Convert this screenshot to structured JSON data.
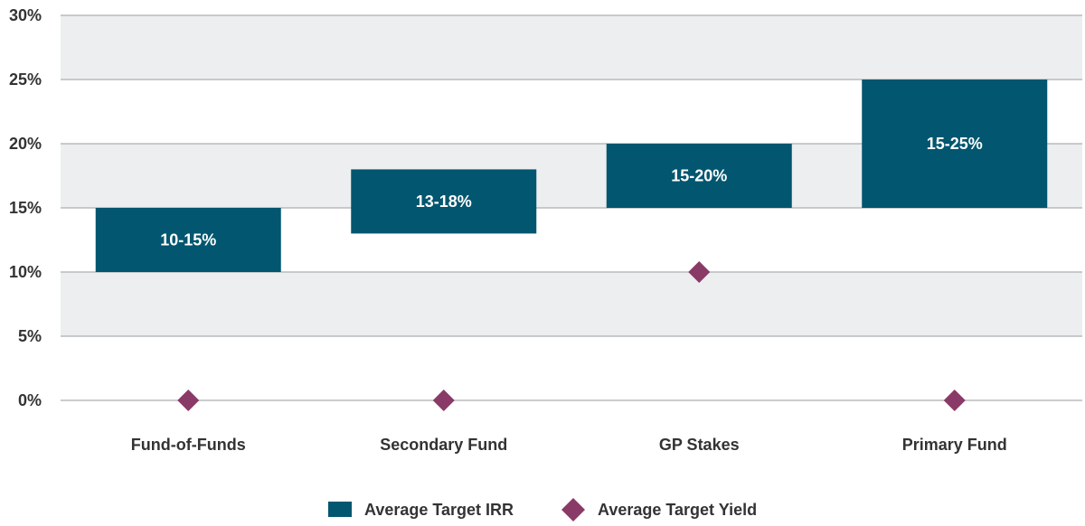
{
  "colors": {
    "bar": "#02566f",
    "marker": "#8a3a66",
    "band": "#eceeef",
    "grid": "#b8bcbe",
    "text": "#333333",
    "bar_text": "#ffffff"
  },
  "chart_data": {
    "type": "bar",
    "subtype": "floating-range-with-markers",
    "title": "",
    "xlabel": "",
    "ylabel": "",
    "ylim": [
      0,
      30
    ],
    "yticks": [
      0,
      5,
      10,
      15,
      20,
      25,
      30
    ],
    "ytick_labels": [
      "0%",
      "5%",
      "10%",
      "15%",
      "20%",
      "25%",
      "30%"
    ],
    "grid": true,
    "legend_position": "bottom-center",
    "categories": [
      "Fund-of-Funds",
      "Secondary Fund",
      "GP Stakes",
      "Primary Fund"
    ],
    "series": [
      {
        "name": "Average Target IRR",
        "kind": "range-bar",
        "low": [
          10,
          13,
          15,
          15
        ],
        "high": [
          15,
          18,
          20,
          25
        ],
        "labels": [
          "10-15%",
          "13-18%",
          "15-20%",
          "15-25%"
        ]
      },
      {
        "name": "Average Target Yield",
        "kind": "diamond-marker",
        "values": [
          0,
          0,
          10,
          0
        ]
      }
    ]
  }
}
